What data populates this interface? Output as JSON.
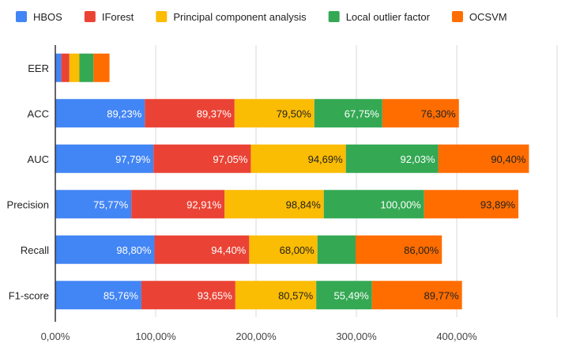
{
  "chart_data": {
    "type": "bar",
    "orientation": "horizontal",
    "stacked": true,
    "title": "",
    "xlabel": "",
    "ylabel": "",
    "xlim": [
      0,
      500
    ],
    "x_ticks": [
      "0,00%",
      "100,00%",
      "200,00%",
      "300,00%",
      "400,00%"
    ],
    "x_tick_values": [
      0,
      100,
      200,
      300,
      400
    ],
    "grid": true,
    "legend_position": "top",
    "categories": [
      "EER",
      "ACC",
      "AUC",
      "Precision",
      "Recall",
      "F1-score"
    ],
    "series": [
      {
        "name": "HBOS",
        "color": "#4285f4",
        "label_color": "#ffffff",
        "values": [
          6,
          89.23,
          97.79,
          75.77,
          98.8,
          85.76
        ],
        "labels": [
          "",
          "89,23%",
          "97,79%",
          "75,77%",
          "98,80%",
          "85,76%"
        ]
      },
      {
        "name": "IForest",
        "color": "#ea4335",
        "label_color": "#ffffff",
        "values": [
          8,
          89.37,
          97.05,
          92.91,
          94.4,
          93.65
        ],
        "labels": [
          "",
          "89,37%",
          "97,05%",
          "92,91%",
          "94,40%",
          "93,65%"
        ]
      },
      {
        "name": "Principal component analysis",
        "color": "#fbbc04",
        "label_color": "#222222",
        "values": [
          10,
          79.5,
          94.69,
          98.84,
          68.0,
          80.57
        ],
        "labels": [
          "",
          "79,50%",
          "94,69%",
          "98,84%",
          "68,00%",
          "80,57%"
        ]
      },
      {
        "name": "Local outlier factor",
        "color": "#34a853",
        "label_color": "#ffffff",
        "values": [
          14,
          67.75,
          92.03,
          100.0,
          38,
          55.49
        ],
        "labels": [
          "",
          "67,75%",
          "92,03%",
          "100,00%",
          "",
          "55,49%"
        ]
      },
      {
        "name": "OCSVM",
        "color": "#ff6d01",
        "label_color": "#222222",
        "values": [
          16,
          76.3,
          90.4,
          93.89,
          86.0,
          89.77
        ],
        "labels": [
          "",
          "76,30%",
          "90,40%",
          "93,89%",
          "86,00%",
          "89,77%"
        ]
      }
    ]
  }
}
